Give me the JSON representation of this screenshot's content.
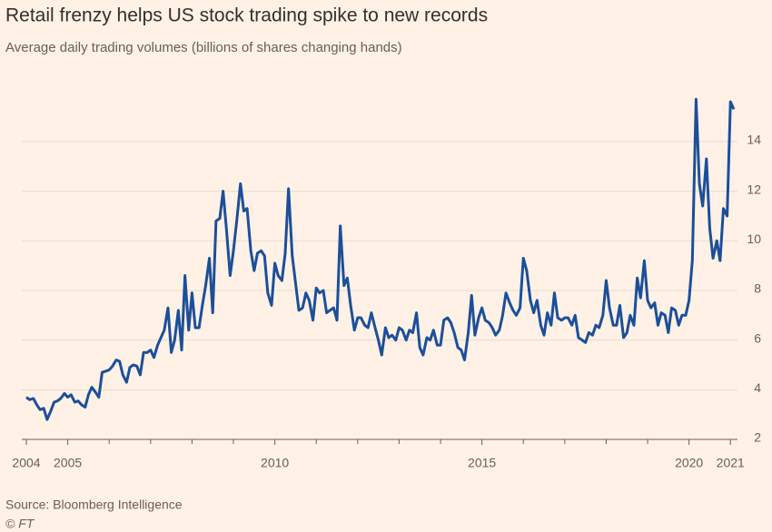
{
  "chart_data": {
    "type": "line",
    "title": "Retail frenzy helps US stock trading spike to new records",
    "subtitle": "Average daily trading volumes (billions of shares changing hands)",
    "source": "Source: Bloomberg Intelligence",
    "credit": "© FT",
    "xlim": [
      2004,
      2021.17
    ],
    "xticks": [
      2004,
      2005,
      2010,
      2015,
      2020,
      2021
    ],
    "xminorticks": [
      2006,
      2007,
      2008,
      2009,
      2011,
      2012,
      2013,
      2014,
      2016,
      2017,
      2018,
      2019
    ],
    "ylim": [
      2,
      16.3
    ],
    "yticks": [
      2,
      4,
      6,
      8,
      10,
      12,
      14
    ],
    "grid": true,
    "x": [
      2004.0,
      2004.08,
      2004.17,
      2004.25,
      2004.33,
      2004.42,
      2004.5,
      2004.58,
      2004.67,
      2004.75,
      2004.83,
      2004.92,
      2005.0,
      2005.08,
      2005.17,
      2005.25,
      2005.33,
      2005.42,
      2005.5,
      2005.58,
      2005.67,
      2005.75,
      2005.83,
      2005.92,
      2006.0,
      2006.08,
      2006.17,
      2006.25,
      2006.33,
      2006.42,
      2006.5,
      2006.58,
      2006.67,
      2006.75,
      2006.83,
      2006.92,
      2007.0,
      2007.08,
      2007.17,
      2007.25,
      2007.33,
      2007.42,
      2007.5,
      2007.58,
      2007.67,
      2007.75,
      2007.83,
      2007.92,
      2008.0,
      2008.08,
      2008.17,
      2008.25,
      2008.33,
      2008.42,
      2008.5,
      2008.58,
      2008.67,
      2008.75,
      2008.83,
      2008.92,
      2009.0,
      2009.08,
      2009.17,
      2009.25,
      2009.33,
      2009.42,
      2009.5,
      2009.58,
      2009.67,
      2009.75,
      2009.83,
      2009.92,
      2010.0,
      2010.08,
      2010.17,
      2010.25,
      2010.33,
      2010.42,
      2010.5,
      2010.58,
      2010.67,
      2010.75,
      2010.83,
      2010.92,
      2011.0,
      2011.08,
      2011.17,
      2011.25,
      2011.33,
      2011.42,
      2011.5,
      2011.58,
      2011.67,
      2011.75,
      2011.83,
      2011.92,
      2012.0,
      2012.08,
      2012.17,
      2012.25,
      2012.33,
      2012.42,
      2012.5,
      2012.58,
      2012.67,
      2012.75,
      2012.83,
      2012.92,
      2013.0,
      2013.08,
      2013.17,
      2013.25,
      2013.33,
      2013.42,
      2013.5,
      2013.58,
      2013.67,
      2013.75,
      2013.83,
      2013.92,
      2014.0,
      2014.08,
      2014.17,
      2014.25,
      2014.33,
      2014.42,
      2014.5,
      2014.58,
      2014.67,
      2014.75,
      2014.83,
      2014.92,
      2015.0,
      2015.08,
      2015.17,
      2015.25,
      2015.33,
      2015.42,
      2015.5,
      2015.58,
      2015.67,
      2015.75,
      2015.83,
      2015.92,
      2016.0,
      2016.08,
      2016.17,
      2016.25,
      2016.33,
      2016.42,
      2016.5,
      2016.58,
      2016.67,
      2016.75,
      2016.83,
      2016.92,
      2017.0,
      2017.08,
      2017.17,
      2017.25,
      2017.33,
      2017.42,
      2017.5,
      2017.58,
      2017.67,
      2017.75,
      2017.83,
      2017.92,
      2018.0,
      2018.08,
      2018.17,
      2018.25,
      2018.33,
      2018.42,
      2018.5,
      2018.58,
      2018.67,
      2018.75,
      2018.83,
      2018.92,
      2019.0,
      2019.08,
      2019.17,
      2019.25,
      2019.33,
      2019.42,
      2019.5,
      2019.58,
      2019.67,
      2019.75,
      2019.83,
      2019.92,
      2020.0,
      2020.08,
      2020.17,
      2020.25,
      2020.33,
      2020.42,
      2020.5,
      2020.58,
      2020.67,
      2020.75,
      2020.83,
      2020.92,
      2021.0,
      2021.08
    ],
    "series": [
      {
        "name": "Average daily trading volume",
        "color": "#1c4f9a",
        "values": [
          3.7,
          3.6,
          3.65,
          3.4,
          3.2,
          3.25,
          2.8,
          3.1,
          3.5,
          3.55,
          3.65,
          3.85,
          3.7,
          3.8,
          3.5,
          3.55,
          3.4,
          3.3,
          3.8,
          4.1,
          3.9,
          3.7,
          4.7,
          4.75,
          4.8,
          4.95,
          5.2,
          5.15,
          4.6,
          4.3,
          4.9,
          5.0,
          4.95,
          4.6,
          5.5,
          5.5,
          5.6,
          5.3,
          5.8,
          6.1,
          6.4,
          7.3,
          5.5,
          6.0,
          7.2,
          5.6,
          8.6,
          6.4,
          7.9,
          6.5,
          6.5,
          7.4,
          8.2,
          9.3,
          7.1,
          10.8,
          10.9,
          12.0,
          10.5,
          8.6,
          9.6,
          10.8,
          12.3,
          11.2,
          11.3,
          9.6,
          8.8,
          9.5,
          9.6,
          9.4,
          7.9,
          7.4,
          9.1,
          8.6,
          8.4,
          9.5,
          12.1,
          9.4,
          8.3,
          7.2,
          7.3,
          7.9,
          7.6,
          6.8,
          8.1,
          7.9,
          8.0,
          7.1,
          7.2,
          7.3,
          6.8,
          10.6,
          8.2,
          8.5,
          7.4,
          6.4,
          6.9,
          6.9,
          6.6,
          6.5,
          7.1,
          6.5,
          6.0,
          5.4,
          6.5,
          6.1,
          6.2,
          6.0,
          6.5,
          6.4,
          6.0,
          6.4,
          6.3,
          7.1,
          5.7,
          5.4,
          6.1,
          6.0,
          6.4,
          5.8,
          5.8,
          6.8,
          6.9,
          6.7,
          6.3,
          5.7,
          5.6,
          5.2,
          6.3,
          7.8,
          6.2,
          6.9,
          7.3,
          6.8,
          6.7,
          6.5,
          6.2,
          6.4,
          7.0,
          7.9,
          7.5,
          7.2,
          7.0,
          7.3,
          9.3,
          8.8,
          7.6,
          7.1,
          7.6,
          6.6,
          6.2,
          7.1,
          6.6,
          7.9,
          6.9,
          6.8,
          6.9,
          6.9,
          6.6,
          7.0,
          6.1,
          6.0,
          5.9,
          6.3,
          6.2,
          6.6,
          6.5,
          7.0,
          8.4,
          7.3,
          6.6,
          6.6,
          7.4,
          6.1,
          6.3,
          7.0,
          6.6,
          8.5,
          7.7,
          9.2,
          7.6,
          7.3,
          7.5,
          6.6,
          7.1,
          7.0,
          6.3,
          7.3,
          7.2,
          6.6,
          7.0,
          7.0,
          7.6,
          9.2,
          15.7,
          12.3,
          11.4,
          13.3,
          10.5,
          9.3,
          10.0,
          9.2,
          11.3,
          11.0,
          15.6,
          15.3
        ]
      }
    ]
  }
}
